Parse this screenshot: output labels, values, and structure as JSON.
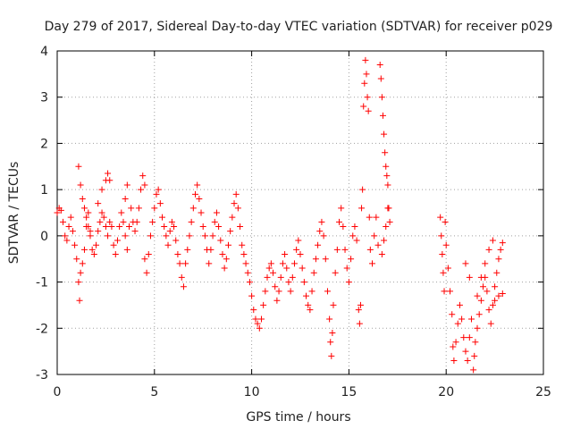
{
  "chart_data": {
    "type": "scatter",
    "title": "Day 279 of 2017, Sidereal Day-to-day VTEC variation (SDTVAR) for receiver p029",
    "xlabel": "GPS time / hours",
    "ylabel": "SDTVAR / TECUs",
    "xlim": [
      0,
      25
    ],
    "ylim": [
      -3,
      4
    ],
    "xticks": [
      "0",
      "5",
      "10",
      "15",
      "20",
      "25"
    ],
    "yticks": [
      "-3",
      "-2",
      "-1",
      "0",
      "1",
      "2",
      "3",
      "4"
    ],
    "grid": true,
    "marker": "plus",
    "series": [
      {
        "name": "SDTVAR",
        "color": "#ff0000",
        "points": [
          [
            0.0,
            0.5
          ],
          [
            0.1,
            0.6
          ],
          [
            0.2,
            0.55
          ],
          [
            0.3,
            0.3
          ],
          [
            0.4,
            0.0
          ],
          [
            0.5,
            -0.1
          ],
          [
            0.6,
            0.2
          ],
          [
            0.7,
            0.4
          ],
          [
            0.8,
            0.1
          ],
          [
            0.9,
            -0.2
          ],
          [
            1.0,
            -0.5
          ],
          [
            1.1,
            -1.0
          ],
          [
            1.15,
            -1.4
          ],
          [
            1.2,
            -0.8
          ],
          [
            1.3,
            -0.6
          ],
          [
            1.4,
            -0.3
          ],
          [
            1.5,
            0.2
          ],
          [
            1.6,
            0.5
          ],
          [
            1.7,
            0.0
          ],
          [
            1.8,
            -0.3
          ],
          [
            1.1,
            1.5
          ],
          [
            1.2,
            1.1
          ],
          [
            1.3,
            0.8
          ],
          [
            1.4,
            0.6
          ],
          [
            1.5,
            0.4
          ],
          [
            1.6,
            0.2
          ],
          [
            1.7,
            0.1
          ],
          [
            1.9,
            -0.4
          ],
          [
            2.0,
            -0.2
          ],
          [
            2.1,
            0.1
          ],
          [
            2.2,
            0.3
          ],
          [
            2.3,
            0.5
          ],
          [
            2.4,
            0.4
          ],
          [
            2.5,
            0.2
          ],
          [
            2.6,
            0.0
          ],
          [
            2.7,
            0.3
          ],
          [
            2.1,
            0.7
          ],
          [
            2.3,
            1.0
          ],
          [
            2.5,
            1.2
          ],
          [
            2.6,
            1.35
          ],
          [
            2.7,
            1.2
          ],
          [
            2.8,
            0.2
          ],
          [
            2.9,
            -0.2
          ],
          [
            3.0,
            -0.4
          ],
          [
            3.1,
            -0.1
          ],
          [
            3.2,
            0.2
          ],
          [
            3.3,
            0.5
          ],
          [
            3.4,
            0.3
          ],
          [
            3.5,
            0.0
          ],
          [
            3.6,
            -0.3
          ],
          [
            3.7,
            0.2
          ],
          [
            3.5,
            0.8
          ],
          [
            3.6,
            1.1
          ],
          [
            3.8,
            0.6
          ],
          [
            3.9,
            0.3
          ],
          [
            4.0,
            0.1
          ],
          [
            4.1,
            0.3
          ],
          [
            4.2,
            0.6
          ],
          [
            4.3,
            1.0
          ],
          [
            4.4,
            1.3
          ],
          [
            4.5,
            1.1
          ],
          [
            4.5,
            -0.5
          ],
          [
            4.6,
            -0.8
          ],
          [
            4.7,
            -0.4
          ],
          [
            4.8,
            0.0
          ],
          [
            4.9,
            0.3
          ],
          [
            5.0,
            0.6
          ],
          [
            5.1,
            0.9
          ],
          [
            5.2,
            1.0
          ],
          [
            5.3,
            0.7
          ],
          [
            5.4,
            0.4
          ],
          [
            5.5,
            0.2
          ],
          [
            5.6,
            0.0
          ],
          [
            5.7,
            -0.2
          ],
          [
            5.8,
            0.1
          ],
          [
            5.9,
            0.3
          ],
          [
            6.0,
            0.2
          ],
          [
            6.1,
            -0.1
          ],
          [
            6.2,
            -0.4
          ],
          [
            6.3,
            -0.6
          ],
          [
            6.4,
            -0.9
          ],
          [
            6.5,
            -1.1
          ],
          [
            6.6,
            -0.6
          ],
          [
            6.7,
            -0.3
          ],
          [
            6.8,
            0.0
          ],
          [
            6.9,
            0.3
          ],
          [
            7.0,
            0.6
          ],
          [
            7.1,
            0.9
          ],
          [
            7.2,
            1.1
          ],
          [
            7.3,
            0.8
          ],
          [
            7.4,
            0.5
          ],
          [
            7.5,
            0.2
          ],
          [
            7.6,
            0.0
          ],
          [
            7.7,
            -0.3
          ],
          [
            7.8,
            -0.6
          ],
          [
            7.9,
            -0.3
          ],
          [
            8.0,
            0.0
          ],
          [
            8.1,
            0.3
          ],
          [
            8.2,
            0.5
          ],
          [
            8.3,
            0.2
          ],
          [
            8.4,
            -0.1
          ],
          [
            8.5,
            -0.4
          ],
          [
            8.6,
            -0.7
          ],
          [
            8.7,
            -0.5
          ],
          [
            8.8,
            -0.2
          ],
          [
            8.9,
            0.1
          ],
          [
            9.0,
            0.4
          ],
          [
            9.1,
            0.7
          ],
          [
            9.2,
            0.9
          ],
          [
            9.3,
            0.6
          ],
          [
            9.4,
            0.2
          ],
          [
            9.5,
            -0.2
          ],
          [
            9.6,
            -0.4
          ],
          [
            9.7,
            -0.6
          ],
          [
            9.8,
            -0.8
          ],
          [
            9.9,
            -1.0
          ],
          [
            10.0,
            -1.3
          ],
          [
            10.1,
            -1.6
          ],
          [
            10.2,
            -1.8
          ],
          [
            10.3,
            -1.9
          ],
          [
            10.4,
            -2.0
          ],
          [
            10.5,
            -1.8
          ],
          [
            10.6,
            -1.5
          ],
          [
            10.7,
            -1.2
          ],
          [
            10.8,
            -0.9
          ],
          [
            10.9,
            -0.7
          ],
          [
            11.0,
            -0.6
          ],
          [
            11.1,
            -0.8
          ],
          [
            11.2,
            -1.1
          ],
          [
            11.3,
            -1.4
          ],
          [
            11.4,
            -1.2
          ],
          [
            11.5,
            -0.9
          ],
          [
            11.6,
            -0.6
          ],
          [
            11.7,
            -0.4
          ],
          [
            11.8,
            -0.7
          ],
          [
            11.9,
            -1.0
          ],
          [
            12.0,
            -1.2
          ],
          [
            12.1,
            -0.9
          ],
          [
            12.2,
            -0.6
          ],
          [
            12.3,
            -0.3
          ],
          [
            12.4,
            -0.1
          ],
          [
            12.5,
            -0.4
          ],
          [
            12.6,
            -0.7
          ],
          [
            12.7,
            -1.0
          ],
          [
            12.8,
            -1.3
          ],
          [
            12.9,
            -1.5
          ],
          [
            13.0,
            -1.6
          ],
          [
            13.1,
            -1.2
          ],
          [
            13.2,
            -0.8
          ],
          [
            13.3,
            -0.5
          ],
          [
            13.4,
            -0.2
          ],
          [
            13.5,
            0.1
          ],
          [
            13.6,
            0.3
          ],
          [
            13.7,
            0.0
          ],
          [
            13.8,
            -0.5
          ],
          [
            13.9,
            -1.2
          ],
          [
            14.0,
            -1.8
          ],
          [
            14.05,
            -2.3
          ],
          [
            14.1,
            -2.6
          ],
          [
            14.15,
            -2.1
          ],
          [
            14.2,
            -1.5
          ],
          [
            14.3,
            -0.8
          ],
          [
            14.4,
            -0.3
          ],
          [
            14.5,
            0.3
          ],
          [
            14.6,
            0.6
          ],
          [
            14.7,
            0.2
          ],
          [
            14.8,
            -0.3
          ],
          [
            14.9,
            -0.7
          ],
          [
            15.0,
            -1.0
          ],
          [
            15.1,
            -0.5
          ],
          [
            15.2,
            0.0
          ],
          [
            15.3,
            0.2
          ],
          [
            15.4,
            -0.1
          ],
          [
            15.5,
            -1.6
          ],
          [
            15.55,
            -1.9
          ],
          [
            15.6,
            -1.5
          ],
          [
            15.65,
            0.6
          ],
          [
            15.7,
            1.0
          ],
          [
            15.75,
            2.8
          ],
          [
            15.8,
            3.3
          ],
          [
            15.85,
            3.8
          ],
          [
            15.9,
            3.5
          ],
          [
            15.95,
            3.0
          ],
          [
            16.0,
            2.7
          ],
          [
            16.05,
            0.4
          ],
          [
            16.1,
            -0.3
          ],
          [
            16.2,
            -0.6
          ],
          [
            16.3,
            0.0
          ],
          [
            16.4,
            0.4
          ],
          [
            16.5,
            -0.2
          ],
          [
            16.6,
            3.7
          ],
          [
            16.65,
            3.4
          ],
          [
            16.7,
            3.0
          ],
          [
            16.75,
            2.6
          ],
          [
            16.8,
            2.2
          ],
          [
            16.85,
            1.8
          ],
          [
            16.9,
            1.5
          ],
          [
            16.95,
            1.3
          ],
          [
            17.0,
            1.1
          ],
          [
            17.05,
            0.6
          ],
          [
            17.1,
            0.3
          ],
          [
            16.7,
            -0.4
          ],
          [
            16.8,
            -0.1
          ],
          [
            16.9,
            0.2
          ],
          [
            17.0,
            0.6
          ],
          [
            19.7,
            0.4
          ],
          [
            19.75,
            0.0
          ],
          [
            19.8,
            -0.4
          ],
          [
            19.85,
            -0.8
          ],
          [
            19.9,
            -1.2
          ],
          [
            19.95,
            0.3
          ],
          [
            20.0,
            -0.2
          ],
          [
            20.1,
            -0.7
          ],
          [
            20.2,
            -1.2
          ],
          [
            20.3,
            -1.7
          ],
          [
            20.35,
            -2.4
          ],
          [
            20.4,
            -2.7
          ],
          [
            20.5,
            -2.3
          ],
          [
            20.6,
            -1.9
          ],
          [
            20.7,
            -1.5
          ],
          [
            20.8,
            -1.8
          ],
          [
            20.9,
            -2.2
          ],
          [
            21.0,
            -2.5
          ],
          [
            21.1,
            -2.7
          ],
          [
            21.2,
            -2.2
          ],
          [
            21.3,
            -1.8
          ],
          [
            21.4,
            -2.9
          ],
          [
            21.45,
            -2.6
          ],
          [
            21.5,
            -2.3
          ],
          [
            21.6,
            -2.0
          ],
          [
            21.7,
            -1.7
          ],
          [
            21.8,
            -1.4
          ],
          [
            21.9,
            -1.1
          ],
          [
            22.0,
            -0.9
          ],
          [
            22.1,
            -1.2
          ],
          [
            22.2,
            -1.6
          ],
          [
            22.3,
            -1.9
          ],
          [
            22.4,
            -1.5
          ],
          [
            22.5,
            -1.1
          ],
          [
            22.6,
            -0.8
          ],
          [
            22.7,
            -0.5
          ],
          [
            22.8,
            -0.3
          ],
          [
            22.9,
            -0.15
          ],
          [
            22.5,
            -1.4
          ],
          [
            22.7,
            -1.3
          ],
          [
            22.9,
            -1.25
          ],
          [
            21.6,
            -1.3
          ],
          [
            21.8,
            -0.9
          ],
          [
            22.0,
            -0.6
          ],
          [
            22.2,
            -0.3
          ],
          [
            22.4,
            -0.1
          ],
          [
            21.2,
            -0.9
          ],
          [
            21.0,
            -0.6
          ]
        ]
      }
    ]
  }
}
